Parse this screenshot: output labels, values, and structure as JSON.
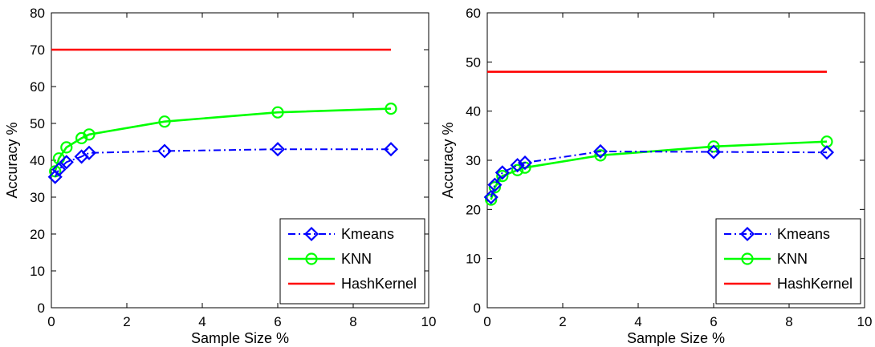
{
  "chart_data": [
    {
      "type": "line",
      "xlabel": "Sample Size %",
      "ylabel": "Accuracy %",
      "xlim": [
        0,
        10
      ],
      "ylim": [
        0,
        80
      ],
      "xticks": [
        "0",
        "2",
        "4",
        "6",
        "8",
        "10"
      ],
      "yticks": [
        "0",
        "10",
        "20",
        "30",
        "40",
        "50",
        "60",
        "70",
        "80"
      ],
      "grid": false,
      "legend_position": "bottom-right",
      "series": [
        {
          "name": "Kmeans",
          "color": "#0000ff",
          "line_style": "dash-dot",
          "marker": "diamond",
          "x": [
            0.1,
            0.2,
            0.4,
            0.8,
            1,
            3,
            6,
            9
          ],
          "y": [
            35.5,
            37.5,
            39.5,
            41,
            42,
            42.5,
            43,
            43
          ]
        },
        {
          "name": "KNN",
          "color": "#00ff00",
          "line_style": "solid",
          "marker": "circle",
          "x": [
            0.1,
            0.2,
            0.4,
            0.8,
            1,
            3,
            6,
            9
          ],
          "y": [
            37,
            40.5,
            43.5,
            46,
            47,
            50.5,
            53,
            54
          ]
        },
        {
          "name": "HashKernel",
          "color": "#ff0000",
          "line_style": "solid",
          "marker": "none",
          "x": [
            0,
            9
          ],
          "y": [
            70,
            70
          ]
        }
      ]
    },
    {
      "type": "line",
      "xlabel": "Sample Size %",
      "ylabel": "Accuracy %",
      "xlim": [
        0,
        10
      ],
      "ylim": [
        0,
        60
      ],
      "xticks": [
        "0",
        "2",
        "4",
        "6",
        "8",
        "10"
      ],
      "yticks": [
        "0",
        "10",
        "20",
        "30",
        "40",
        "50",
        "60"
      ],
      "grid": false,
      "legend_position": "bottom-right",
      "series": [
        {
          "name": "Kmeans",
          "color": "#0000ff",
          "line_style": "dash-dot",
          "marker": "diamond",
          "x": [
            0.1,
            0.2,
            0.4,
            0.8,
            1,
            3,
            6,
            9
          ],
          "y": [
            22.5,
            25,
            27.5,
            29,
            29.5,
            31.8,
            31.7,
            31.6
          ]
        },
        {
          "name": "KNN",
          "color": "#00ff00",
          "line_style": "solid",
          "marker": "circle",
          "x": [
            0.1,
            0.2,
            0.4,
            0.8,
            1,
            3,
            6,
            9
          ],
          "y": [
            22,
            24.5,
            26.8,
            28,
            28.5,
            31,
            32.8,
            33.8
          ]
        },
        {
          "name": "HashKernel",
          "color": "#ff0000",
          "line_style": "solid",
          "marker": "none",
          "x": [
            0,
            9
          ],
          "y": [
            48,
            48
          ]
        }
      ]
    }
  ]
}
